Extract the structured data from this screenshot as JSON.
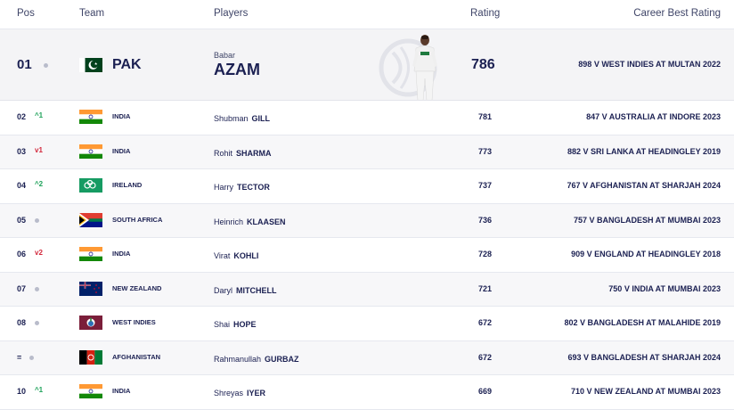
{
  "header": {
    "pos": "Pos",
    "team": "Team",
    "players": "Players",
    "rating": "Rating",
    "career": "Career Best Rating"
  },
  "top": {
    "pos": "01",
    "team": "PAK",
    "first_name": "Babar",
    "last_name": "AZAM",
    "rating": "786",
    "career": "898 V WEST INDIES AT MULTAN 2022"
  },
  "rows": [
    {
      "pos": "02",
      "move": "^1",
      "move_dir": "up",
      "team": "INDIA",
      "first": "Shubman",
      "last": "GILL",
      "rating": "781",
      "career": "847 V AUSTRALIA AT INDORE 2023"
    },
    {
      "pos": "03",
      "move": "v1",
      "move_dir": "down",
      "team": "INDIA",
      "first": "Rohit",
      "last": "SHARMA",
      "rating": "773",
      "career": "882 V SRI LANKA AT HEADINGLEY 2019"
    },
    {
      "pos": "04",
      "move": "^2",
      "move_dir": "up",
      "team": "IRELAND",
      "first": "Harry",
      "last": "TECTOR",
      "rating": "737",
      "career": "767 V AFGHANISTAN AT SHARJAH 2024"
    },
    {
      "pos": "05",
      "move": "",
      "move_dir": "same",
      "team": "SOUTH AFRICA",
      "first": "Heinrich",
      "last": "KLAASEN",
      "rating": "736",
      "career": "757 V BANGLADESH AT MUMBAI 2023"
    },
    {
      "pos": "06",
      "move": "v2",
      "move_dir": "down",
      "team": "INDIA",
      "first": "Virat",
      "last": "KOHLI",
      "rating": "728",
      "career": "909 V ENGLAND AT HEADINGLEY 2018"
    },
    {
      "pos": "07",
      "move": "",
      "move_dir": "same",
      "team": "NEW ZEALAND",
      "first": "Daryl",
      "last": "MITCHELL",
      "rating": "721",
      "career": "750 V INDIA AT MUMBAI 2023"
    },
    {
      "pos": "08",
      "move": "",
      "move_dir": "same",
      "team": "WEST INDIES",
      "first": "Shai",
      "last": "HOPE",
      "rating": "672",
      "career": "802 V BANGLADESH AT MALAHIDE 2019"
    },
    {
      "pos": "=",
      "move": "",
      "move_dir": "same",
      "team": "AFGHANISTAN",
      "first": "Rahmanullah",
      "last": "GURBAZ",
      "rating": "672",
      "career": "693 V BANGLADESH AT SHARJAH 2024"
    },
    {
      "pos": "10",
      "move": "^1",
      "move_dir": "up",
      "team": "INDIA",
      "first": "Shreyas",
      "last": "IYER",
      "rating": "669",
      "career": "710 V NEW ZEALAND AT MUMBAI 2023"
    }
  ],
  "icons": {
    "flags": [
      "pakistan-flag-icon",
      "india-flag-icon",
      "ireland-flag-icon",
      "south-africa-flag-icon",
      "new-zealand-flag-icon",
      "west-indies-flag-icon",
      "afghanistan-flag-icon"
    ],
    "move_up": "chevron-up-icon",
    "move_down": "chevron-down-icon",
    "no_change": "dot-icon"
  },
  "colors": {
    "navy": "#1b2052",
    "up": "#1fa25a",
    "down": "#d3283c",
    "highlight_bg": "#f4f4f6"
  }
}
